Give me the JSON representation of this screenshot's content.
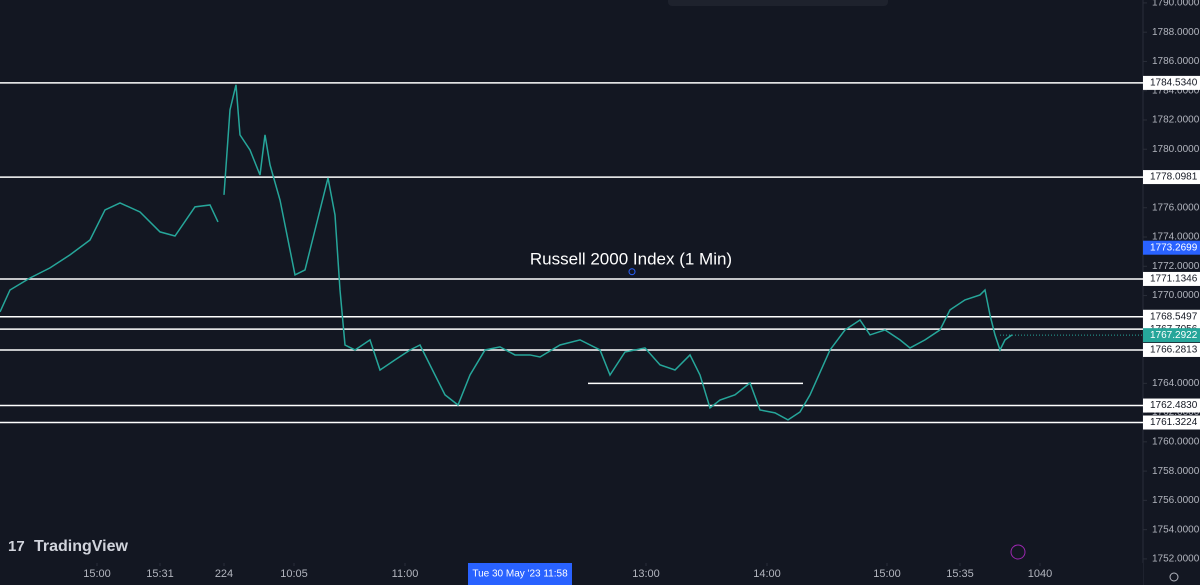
{
  "chart_data": {
    "type": "line",
    "title": "Russell 2000 Index (1 Min)",
    "watermark": "TradingView",
    "x": [
      0,
      10,
      30,
      50,
      70,
      90,
      105,
      120,
      140,
      160,
      175,
      195,
      210,
      218,
      221,
      224,
      230,
      236,
      240,
      250,
      260,
      265,
      270,
      280,
      295,
      305,
      315,
      328,
      335,
      340,
      345,
      355,
      370,
      380,
      395,
      410,
      420,
      435,
      445,
      458,
      470,
      485,
      500,
      515,
      530,
      540,
      560,
      580,
      600,
      610,
      625,
      645,
      660,
      675,
      690,
      700,
      710,
      720,
      735,
      750,
      760,
      775,
      788,
      800,
      810,
      830,
      845,
      860,
      870,
      885,
      900,
      910,
      925,
      940,
      950,
      965,
      980,
      985,
      990,
      995,
      1000,
      1005,
      1012
    ],
    "series": [
      {
        "name": "Russell 2000 Index",
        "color": "#26a69a",
        "values": [
          1768.88,
          1770.38,
          1771.2,
          1771.89,
          1772.78,
          1773.8,
          1775.85,
          1776.33,
          1775.71,
          1774.35,
          1774.07,
          1776.06,
          1776.19,
          1775.03,
          null,
          1776.88,
          1782.69,
          1784.4,
          1780.98,
          1779.95,
          1778.24,
          1780.98,
          1778.93,
          1776.53,
          1771.41,
          1771.75,
          1774.48,
          1778.04,
          1775.51,
          1770.38,
          1766.62,
          1766.28,
          1766.97,
          1764.91,
          1765.6,
          1766.28,
          1766.62,
          1764.57,
          1763.21,
          1762.52,
          1764.57,
          1766.28,
          1766.49,
          1765.94,
          1765.94,
          1765.8,
          1766.62,
          1766.97,
          1766.28,
          1764.57,
          1766.14,
          1766.42,
          1765.26,
          1764.91,
          1765.94,
          1764.57,
          1762.32,
          1762.86,
          1763.21,
          1764.03,
          1762.18,
          1761.98,
          1761.5,
          1762.04,
          1763.21,
          1766.28,
          1767.65,
          1768.33,
          1767.31,
          1767.65,
          1766.97,
          1766.42,
          1766.97,
          1767.65,
          1769.02,
          1769.7,
          1770.04,
          1770.38,
          1768.67,
          1767.31,
          1766.28,
          1766.97,
          1767.31
        ]
      }
    ],
    "xlim": [
      0,
      1140
    ],
    "xticks": [
      {
        "value": 97,
        "label": "15:00"
      },
      {
        "value": 160,
        "label": "15:31"
      },
      224,
      {
        "value": 294,
        "label": "10:05"
      },
      {
        "value": 405,
        "label": "11:00"
      },
      {
        "value": 646,
        "label": "13:00"
      },
      {
        "value": 767,
        "label": "14:00"
      },
      {
        "value": 887,
        "label": "15:00"
      },
      {
        "value": 960,
        "label": "15:35"
      },
      1040
    ],
    "ylim": [
      1751.72,
      1790.2
    ],
    "yticks": [
      {
        "value": 1752,
        "label": "1752.0000"
      },
      {
        "value": 1754,
        "label": "1754.0000"
      },
      {
        "value": 1756,
        "label": "1756.0000"
      },
      {
        "value": 1758,
        "label": "1758.0000"
      },
      {
        "value": 1760,
        "label": "1760.0000"
      },
      {
        "value": 1762,
        "label": "1762.0000"
      },
      {
        "value": 1764,
        "label": "1764.0000"
      },
      {
        "value": 1766,
        "label": "1766.0000"
      },
      {
        "value": 1768,
        "label": "1768.0000"
      },
      {
        "value": 1770,
        "label": "1770.0000"
      },
      {
        "value": 1772,
        "label": "1772.0000"
      },
      {
        "value": 1774,
        "label": "1774.0000"
      },
      {
        "value": 1776,
        "label": "1776.0000"
      },
      {
        "value": 1778,
        "label": "1778.0000"
      },
      {
        "value": 1780,
        "label": "1780.0000"
      },
      {
        "value": 1782,
        "label": "1782.0000"
      },
      {
        "value": 1784,
        "label": "1784.0000"
      },
      {
        "value": 1786,
        "label": "1786.0000"
      },
      {
        "value": 1788,
        "label": "1788.0000"
      },
      {
        "value": 1790,
        "label": "1790.0000"
      }
    ],
    "levels": [
      {
        "value": 1784.534,
        "label": "1784.5340"
      },
      {
        "value": 1778.0981,
        "label": "1778.0981"
      },
      {
        "value": 1771.1346,
        "label": "1771.1346"
      },
      {
        "value": 1768.5497,
        "label": "1768.5497"
      },
      {
        "value": 1767.7056,
        "label": "1767.7056"
      },
      {
        "value": 1766.2813,
        "label": "1766.2813"
      },
      {
        "value": 1762.483,
        "label": "1762.4830"
      },
      {
        "value": 1761.3224,
        "label": "1761.3224"
      }
    ],
    "segment": {
      "value": 1764.0,
      "x": [
        588,
        803
      ]
    },
    "crosshair": {
      "x": 520,
      "x_label": "Tue 30 May '23  11:58",
      "y": 1773.2699,
      "y_label": "1773.2699"
    },
    "last_price": {
      "value": 1767.2922,
      "label": "1767.2922",
      "color": "#26a69a"
    }
  }
}
